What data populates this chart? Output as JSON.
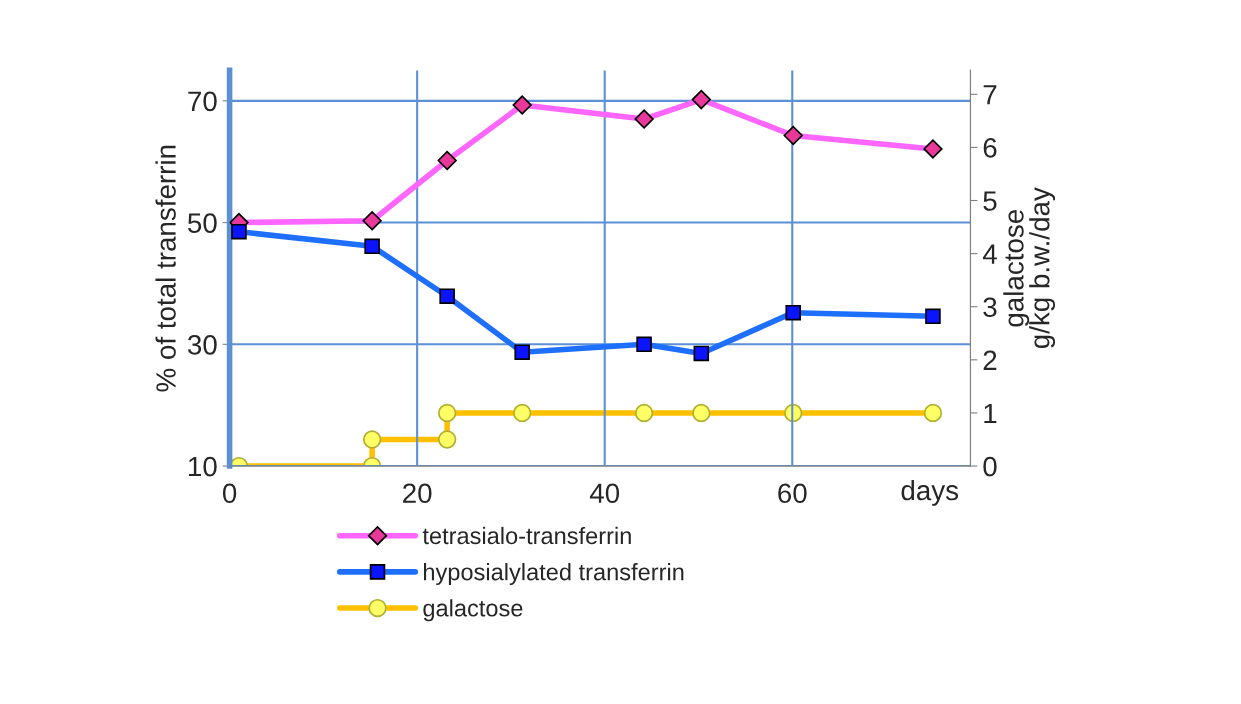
{
  "chart_data": {
    "type": "line",
    "xlabel": "days",
    "ylabel": "% of total transferrin",
    "y2label": "galactose\ng/kg b.w./day",
    "x": [
      1,
      15.2,
      23.2,
      31.2,
      44.2,
      50.3,
      60.1,
      75
    ],
    "series": [
      {
        "name": "tetrasialo-transferrin",
        "color": "#ff66ff",
        "marker": "diamond",
        "values": [
          50,
          50.3,
          60.2,
          69.3,
          67,
          70.2,
          64.3,
          62.1
        ]
      },
      {
        "name": "hyposialylated transferrin",
        "color": "#1f6fff",
        "marker": "square",
        "values": [
          48.5,
          46.1,
          37.9,
          28.7,
          30,
          28.5,
          35.2,
          34.6
        ]
      },
      {
        "name": "galactose",
        "color": "#ffc000",
        "marker": "circle",
        "axis": "y2",
        "x": [
          1,
          15.2,
          15.2,
          23.2,
          23.2,
          31.2,
          44.2,
          50.3,
          60.1,
          75
        ],
        "values": [
          0,
          0,
          0.5,
          0.5,
          1,
          1,
          1,
          1,
          1,
          1
        ]
      }
    ],
    "xlim": [
      0,
      79
    ],
    "xticks": [
      0,
      20,
      40,
      60
    ],
    "ylim": [
      10,
      75
    ],
    "yticks": [
      10,
      30,
      50,
      70
    ],
    "y2lim": [
      0,
      7.45
    ],
    "y2ticks": [
      0,
      1,
      2,
      3,
      4,
      5,
      6,
      7
    ],
    "grid": true,
    "legend": "bottom",
    "line_style": "solid"
  }
}
